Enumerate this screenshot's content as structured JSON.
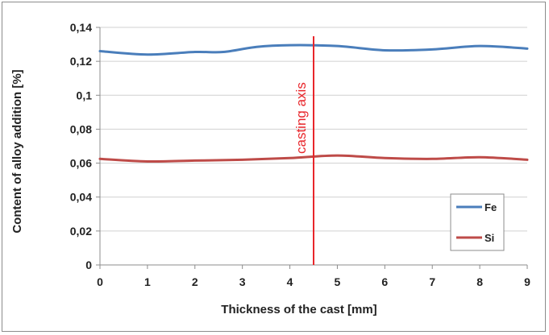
{
  "chart_data": {
    "type": "line",
    "xlabel": "Thickness of the cast [mm]",
    "ylabel": "Content of alloy addition [%]",
    "xlim": [
      0,
      9
    ],
    "ylim": [
      0,
      0.14
    ],
    "x_ticks": [
      0,
      1,
      2,
      3,
      4,
      5,
      6,
      7,
      8,
      9
    ],
    "x_tick_labels": [
      "0",
      "1",
      "2",
      "3",
      "4",
      "5",
      "6",
      "7",
      "8",
      "9"
    ],
    "y_ticks": [
      0,
      0.02,
      0.04,
      0.06,
      0.08,
      0.1,
      0.12,
      0.14
    ],
    "y_tick_labels": [
      "0",
      "0,02",
      "0,04",
      "0,06",
      "0,08",
      "0,1",
      "0,12",
      "0,14"
    ],
    "grid": "horizontal",
    "legend_position": "bottom-right",
    "series": [
      {
        "name": "Fe",
        "color": "#4a7ebb",
        "x": [
          0,
          1,
          2,
          2.6,
          3.3,
          4,
          5,
          6,
          7,
          8,
          9
        ],
        "values": [
          0.126,
          0.124,
          0.1255,
          0.1255,
          0.1285,
          0.1295,
          0.129,
          0.1265,
          0.127,
          0.129,
          0.1275
        ]
      },
      {
        "name": "Si",
        "color": "#be4b48",
        "x": [
          0,
          1,
          2,
          3,
          4,
          5,
          6,
          7,
          8,
          9
        ],
        "values": [
          0.0625,
          0.061,
          0.0615,
          0.062,
          0.063,
          0.0645,
          0.063,
          0.0625,
          0.0635,
          0.062
        ]
      }
    ],
    "annotations": [
      {
        "type": "vertical-line",
        "x": 4.5,
        "label": "casting axis",
        "color": "#e8262b"
      }
    ]
  }
}
